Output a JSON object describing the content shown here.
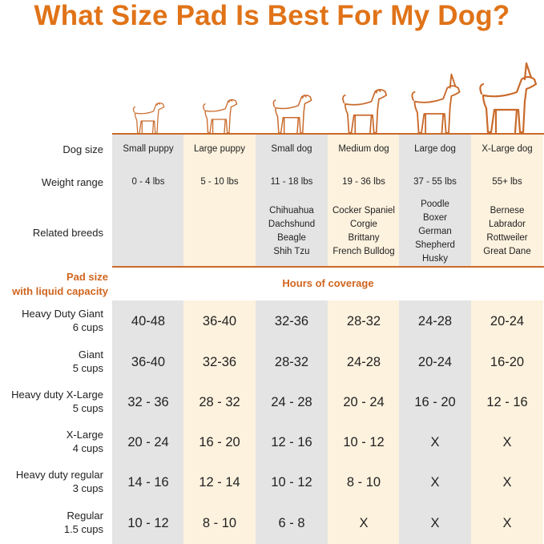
{
  "title": "What Size Pad Is Best For My Dog?",
  "colors": {
    "accent": "#e07318",
    "line": "#c96a2b",
    "gray_col": "#e4e4e4",
    "cream_col": "#fdf2de"
  },
  "row_labels": {
    "dog_size": "Dog size",
    "weight_range": "Weight range",
    "related_breeds": "Related breeds"
  },
  "columns": [
    {
      "size": "Small puppy",
      "weight": "0 - 4 lbs",
      "breeds": [],
      "icon": "small-puppy-icon"
    },
    {
      "size": "Large puppy",
      "weight": "5 - 10 lbs",
      "breeds": [],
      "icon": "large-puppy-icon"
    },
    {
      "size": "Small dog",
      "weight": "11 - 18 lbs",
      "breeds": [
        "Chihuahua",
        "Dachshund",
        "Beagle",
        "Shih Tzu"
      ],
      "icon": "small-dog-icon"
    },
    {
      "size": "Medium dog",
      "weight": "19 - 36 lbs",
      "breeds": [
        "Cocker Spaniel",
        "Corgie",
        "Brittany",
        "French Bulldog"
      ],
      "icon": "medium-dog-icon"
    },
    {
      "size": "Large dog",
      "weight": "37 - 55 lbs",
      "breeds": [
        "Poodle",
        "Boxer",
        "German",
        "Shepherd",
        "Husky"
      ],
      "icon": "large-dog-icon"
    },
    {
      "size": "X-Large dog",
      "weight": "55+ lbs",
      "breeds": [
        "Bernese",
        "Labrador",
        "Rottweiler",
        "Great Dane"
      ],
      "icon": "xlarge-dog-icon"
    }
  ],
  "pad_header": {
    "line1": "Pad size",
    "line2": "with liquid capacity"
  },
  "hours_header": "Hours of coverage",
  "pads": [
    {
      "name": "Heavy Duty Giant",
      "capacity": "6 cups",
      "hours": [
        "40-48",
        "36-40",
        "32-36",
        "28-32",
        "24-28",
        "20-24"
      ]
    },
    {
      "name": "Giant",
      "capacity": "5 cups",
      "hours": [
        "36-40",
        "32-36",
        "28-32",
        "24-28",
        "20-24",
        "16-20"
      ]
    },
    {
      "name": "Heavy duty X-Large",
      "capacity": "5 cups",
      "hours": [
        "32 - 36",
        "28 - 32",
        "24 - 28",
        "20 - 24",
        "16 - 20",
        "12 - 16"
      ]
    },
    {
      "name": "X-Large",
      "capacity": "4 cups",
      "hours": [
        "20 - 24",
        "16 - 20",
        "12 - 16",
        "10 - 12",
        "X",
        "X"
      ]
    },
    {
      "name": "Heavy duty regular",
      "capacity": "3 cups",
      "hours": [
        "14 - 16",
        "12 - 14",
        "10 - 12",
        "8 - 10",
        "X",
        "X"
      ]
    },
    {
      "name": "Regular",
      "capacity": "1.5 cups",
      "hours": [
        "10 - 12",
        "8 - 10",
        "6 - 8",
        "X",
        "X",
        "X"
      ]
    }
  ]
}
